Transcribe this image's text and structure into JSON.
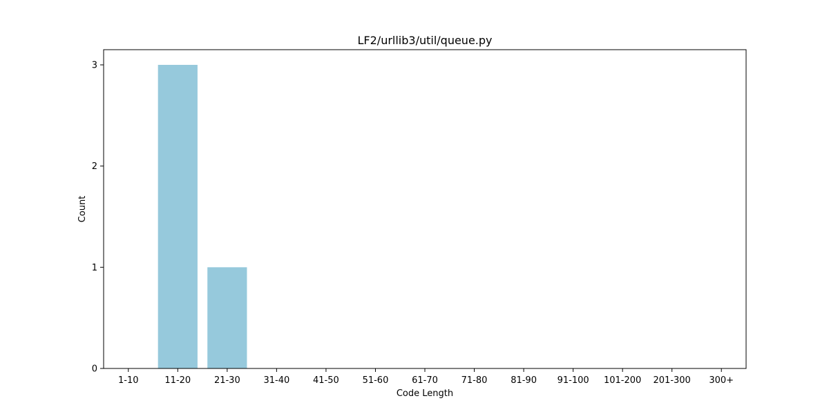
{
  "chart_data": {
    "type": "bar",
    "title": "LF2/urllib3/util/queue.py",
    "xlabel": "Code Length",
    "ylabel": "Count",
    "categories": [
      "1-10",
      "11-20",
      "21-30",
      "31-40",
      "41-50",
      "51-60",
      "61-70",
      "71-80",
      "81-90",
      "91-100",
      "101-200",
      "201-300",
      "300+"
    ],
    "values": [
      0,
      3,
      1,
      0,
      0,
      0,
      0,
      0,
      0,
      0,
      0,
      0,
      0
    ],
    "ylim": [
      0,
      3.15
    ],
    "yticks": [
      0,
      1,
      2,
      3
    ],
    "bar_color": "#96c9dc",
    "grid": false,
    "legend": "none"
  }
}
